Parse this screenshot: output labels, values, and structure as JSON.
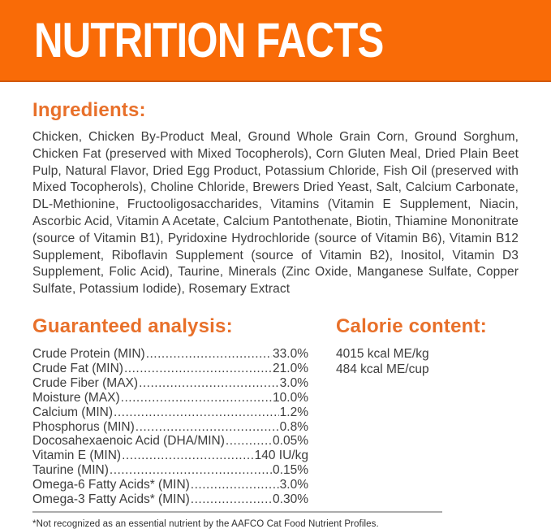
{
  "colors": {
    "band_orange": "#F96B07",
    "band_edge": "#D2590B",
    "heading_orange": "#E8702A",
    "body_text": "#3D3D3D"
  },
  "header": {
    "title": "NUTRITION FACTS"
  },
  "ingredients": {
    "heading": "Ingredients:",
    "text": "Chicken, Chicken By-Product Meal, Ground Whole Grain Corn, Ground Sorghum, Chicken Fat (preserved with Mixed Tocopherols), Corn Gluten Meal, Dried Plain Beet Pulp, Natural Flavor, Dried Egg Product, Potassium Chloride, Fish Oil (preserved with Mixed Tocopherols), Choline Chloride, Brewers Dried Yeast, Salt, Calcium Carbonate, DL-Methionine, Fructooligosaccharides, Vitamins (Vitamin E Supplement, Niacin, Ascorbic Acid, Vitamin A Acetate, Calcium Pantothenate, Biotin, Thiamine Mononitrate (source of Vitamin B1), Pyridoxine Hydrochloride (source of Vitamin B6), Vitamin B12 Supplement, Riboflavin Supplement (source of Vitamin B2), Inositol, Vitamin D3 Supplement, Folic Acid), Taurine, Minerals (Zinc Oxide, Manganese Sulfate, Copper Sulfate, Potassium Iodide), Rosemary Extract"
  },
  "guaranteed_analysis": {
    "heading": "Guaranteed analysis:",
    "rows": [
      {
        "label": "Crude Protein (MIN)",
        "value": "33.0%"
      },
      {
        "label": "Crude Fat (MIN)",
        "value": "21.0%"
      },
      {
        "label": "Crude Fiber (MAX)",
        "value": "3.0%"
      },
      {
        "label": "Moisture (MAX)",
        "value": "10.0%"
      },
      {
        "label": "Calcium (MIN)",
        "value": "1.2%"
      },
      {
        "label": "Phosphorus (MIN)",
        "value": "0.8%"
      },
      {
        "label": "Docosahexaenoic Acid (DHA/MIN)",
        "value": "0.05%"
      },
      {
        "label": "Vitamin E (MIN)",
        "value": "140 IU/kg"
      },
      {
        "label": "Taurine (MIN)",
        "value": "0.15%"
      },
      {
        "label": "Omega-6 Fatty Acids* (MIN)",
        "value": "3.0%"
      },
      {
        "label": "Omega-3 Fatty Acids* (MIN)",
        "value": "0.30%"
      }
    ]
  },
  "calorie_content": {
    "heading": "Calorie content:",
    "lines": [
      "4015 kcal ME/kg",
      "484 kcal ME/cup"
    ]
  },
  "footnote": "*Not recognized as an essential nutrient by the AAFCO Cat Food Nutrient Profiles."
}
